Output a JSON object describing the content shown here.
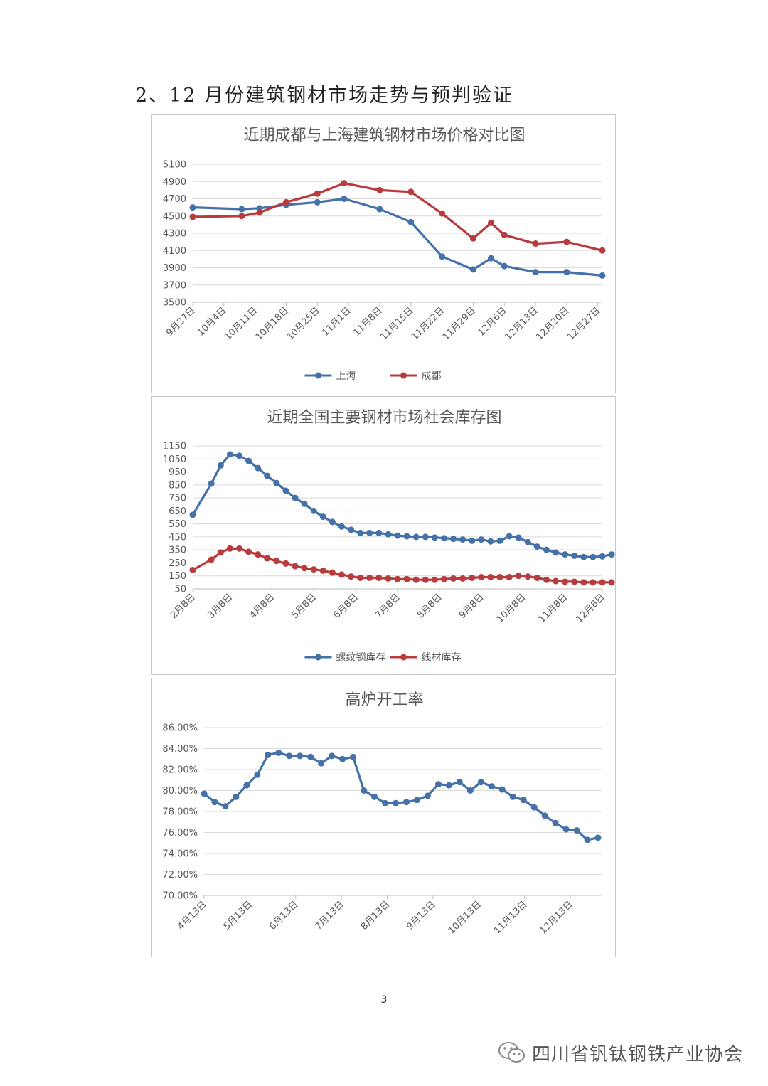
{
  "heading": "2、12 月份建筑钢材市场走势与预判验证",
  "page_number": "3",
  "footer": {
    "text": "四川省钒钛钢铁产业协会",
    "icon": "wechat-icon"
  },
  "colors": {
    "blue": "#4472a8",
    "red": "#b83b3d",
    "grid": "#d9d9d9"
  },
  "chart_data": [
    {
      "type": "line",
      "title": "近期成都与上海建筑钢材市场价格对比图",
      "xlabel": "",
      "ylabel": "",
      "ylim": [
        3500,
        5100
      ],
      "yticks": [
        3500,
        3700,
        3900,
        4100,
        4300,
        4500,
        4700,
        4900,
        5100
      ],
      "ytick_labels": [
        "3500",
        "3700",
        "3900",
        "4100",
        "4300",
        "4500",
        "4700",
        "4900",
        "5100"
      ],
      "xlim": [
        0,
        92
      ],
      "xticks": [
        0,
        7,
        14,
        21,
        28,
        35,
        42,
        49,
        56,
        63,
        70,
        77,
        84,
        91
      ],
      "xtick_labels": [
        "9月27日",
        "10月4日",
        "10月11日",
        "10月18日",
        "10月25日",
        "11月1日",
        "11月8日",
        "11月15日",
        "11月22日",
        "11月29日",
        "12月6日",
        "12月13日",
        "12月20日",
        "12月27日"
      ],
      "series": [
        {
          "name": "上海",
          "color": "#4472a8",
          "x": [
            0,
            11,
            15,
            21,
            28,
            34,
            42,
            49,
            56,
            63,
            67,
            70,
            77,
            84,
            92
          ],
          "values": [
            4600,
            4580,
            4590,
            4630,
            4660,
            4700,
            4580,
            4430,
            4030,
            3880,
            4010,
            3920,
            3850,
            3850,
            3810
          ]
        },
        {
          "name": "成都",
          "color": "#b83b3d",
          "x": [
            0,
            11,
            15,
            21,
            28,
            34,
            42,
            49,
            56,
            63,
            67,
            70,
            77,
            84,
            92
          ],
          "values": [
            4490,
            4500,
            4540,
            4660,
            4760,
            4880,
            4800,
            4780,
            4530,
            4240,
            4420,
            4280,
            4180,
            4200,
            4100
          ]
        }
      ],
      "legend": "bottom"
    },
    {
      "type": "line",
      "title": "近期全国主要钢材市场社会库存图",
      "xlabel": "",
      "ylabel": "",
      "ylim": [
        50,
        1150
      ],
      "yticks": [
        50,
        150,
        250,
        350,
        450,
        550,
        650,
        750,
        850,
        950,
        1050,
        1150
      ],
      "ytick_labels": [
        "50",
        "150",
        "250",
        "350",
        "450",
        "550",
        "650",
        "750",
        "850",
        "950",
        "1050",
        "1150"
      ],
      "xlim": [
        0,
        44
      ],
      "xticks": [
        0,
        4,
        8.5,
        13,
        17.5,
        22,
        26.5,
        31,
        35.5,
        40,
        44
      ],
      "xtick_labels": [
        "2月8日",
        "3月8日",
        "4月8日",
        "5月8日",
        "6月8日",
        "7月8日",
        "8月8日",
        "9月8日",
        "10月8日",
        "11月8日",
        "12月8日"
      ],
      "series": [
        {
          "name": "螺纹钢库存",
          "color": "#4472a8",
          "x": [
            0,
            2,
            3,
            4,
            5,
            6,
            7,
            8,
            9,
            10,
            11,
            12,
            13,
            14,
            15,
            16,
            17,
            18,
            19,
            20,
            21,
            22,
            23,
            24,
            25,
            26,
            27,
            28,
            29,
            30,
            31,
            32,
            33,
            34,
            35,
            36,
            37,
            38,
            39,
            40,
            41,
            42,
            43,
            44,
            45
          ],
          "values": [
            620,
            860,
            1000,
            1085,
            1075,
            1035,
            980,
            920,
            865,
            805,
            750,
            705,
            650,
            605,
            565,
            530,
            505,
            480,
            480,
            480,
            470,
            460,
            455,
            450,
            450,
            445,
            440,
            435,
            430,
            420,
            430,
            415,
            420,
            455,
            445,
            410,
            375,
            350,
            330,
            315,
            305,
            295,
            295,
            300,
            315
          ]
        },
        {
          "name": "线材库存",
          "color": "#b83b3d",
          "x": [
            0,
            2,
            3,
            4,
            5,
            6,
            7,
            8,
            9,
            10,
            11,
            12,
            13,
            14,
            15,
            16,
            17,
            18,
            19,
            20,
            21,
            22,
            23,
            24,
            25,
            26,
            27,
            28,
            29,
            30,
            31,
            32,
            33,
            34,
            35,
            36,
            37,
            38,
            39,
            40,
            41,
            42,
            43,
            44,
            45
          ],
          "values": [
            195,
            275,
            330,
            360,
            360,
            335,
            315,
            285,
            265,
            245,
            225,
            210,
            200,
            190,
            175,
            160,
            145,
            135,
            135,
            135,
            130,
            125,
            125,
            120,
            120,
            120,
            125,
            130,
            130,
            135,
            140,
            140,
            140,
            140,
            150,
            145,
            135,
            120,
            110,
            105,
            105,
            100,
            100,
            100,
            100
          ]
        }
      ],
      "legend": "bottom"
    },
    {
      "type": "line",
      "title": "高炉开工率",
      "xlabel": "",
      "ylabel": "",
      "ylim": [
        70,
        86
      ],
      "yticks": [
        70,
        72,
        74,
        76,
        78,
        80,
        82,
        84,
        86
      ],
      "ytick_labels": [
        "70.00%",
        "72.00%",
        "74.00%",
        "76.00%",
        "78.00%",
        "80.00%",
        "82.00%",
        "84.00%",
        "86.00%"
      ],
      "xlim": [
        0,
        37.4
      ],
      "xticks": [
        0,
        4.3,
        8.6,
        12.9,
        17.2,
        21.5,
        25.8,
        30.1,
        34.4
      ],
      "xtick_labels": [
        "4月13日",
        "5月13日",
        "6月13日",
        "7月13日",
        "8月13日",
        "9月13日",
        "10月13日",
        "11月13日",
        "12月13日"
      ],
      "series": [
        {
          "name": "高炉开工率",
          "color": "#4472a8",
          "x": [
            0,
            1,
            2,
            3,
            4,
            5,
            6,
            7,
            8,
            9,
            10,
            11,
            12,
            13,
            14,
            15,
            16,
            17,
            18,
            19,
            20,
            21,
            22,
            23,
            24,
            25,
            26,
            27,
            28,
            29,
            30,
            31,
            32,
            33,
            34,
            35,
            36,
            37
          ],
          "values": [
            79.7,
            78.9,
            78.5,
            79.4,
            80.5,
            81.5,
            83.4,
            83.6,
            83.3,
            83.3,
            83.2,
            82.6,
            83.3,
            83.0,
            83.2,
            80.0,
            79.4,
            78.8,
            78.8,
            78.9,
            79.1,
            79.5,
            80.6,
            80.5,
            80.8,
            80.0,
            80.8,
            80.4,
            80.1,
            79.4,
            79.1,
            78.4,
            77.6,
            76.9,
            76.3,
            76.2,
            75.3,
            75.5
          ]
        }
      ],
      "legend": "none"
    }
  ]
}
